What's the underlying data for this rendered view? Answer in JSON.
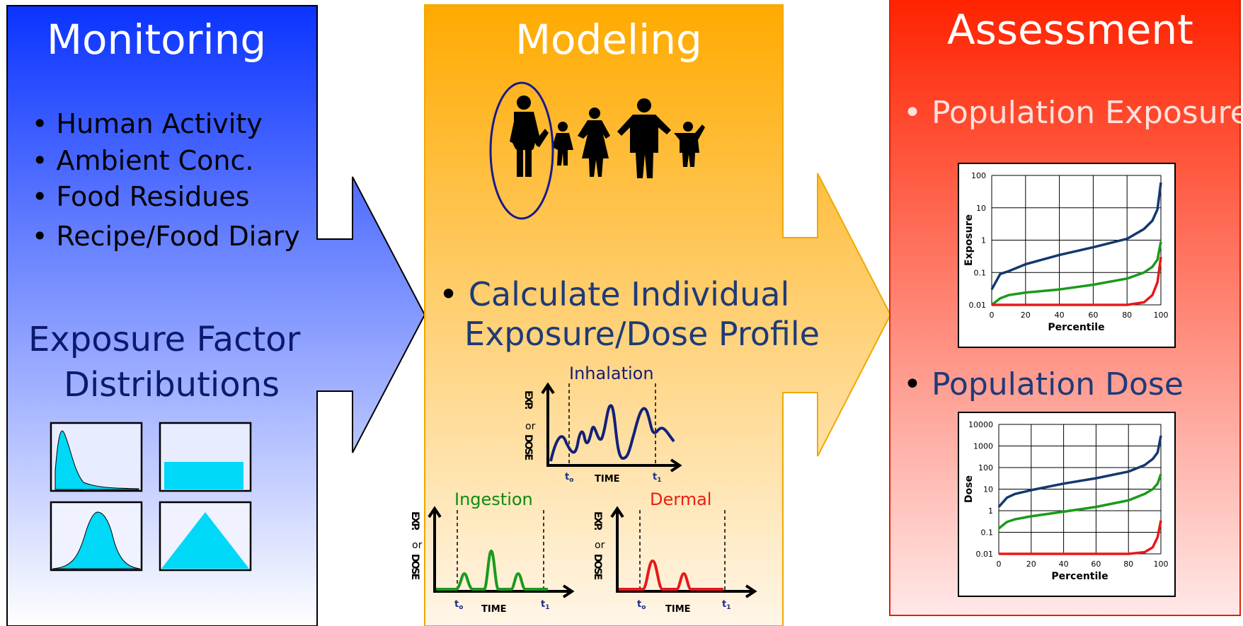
{
  "panels": {
    "monitoring": {
      "title": "Monitoring",
      "bullets": [
        "Human Activity",
        "Ambient Conc.",
        "Food Residues",
        "Recipe/Food Diary"
      ],
      "subtitle_line1": "Exposure Factor",
      "subtitle_line2": "Distributions"
    },
    "modeling": {
      "title": "Modeling",
      "bullet_line1": "Calculate Individual",
      "bullet_line2": "Exposure/Dose Profile",
      "graphs": {
        "inhalation": {
          "label": "Inhalation",
          "color": "#1a1a7a"
        },
        "ingestion": {
          "label": "Ingestion",
          "color": "#108a10"
        },
        "dermal": {
          "label": "Dermal",
          "color": "#e82010"
        }
      },
      "axis_y": {
        "top": "EXP.",
        "mid": "or",
        "bottom": "DOSE"
      },
      "axis_x": "TIME",
      "t0": "t",
      "t0_sub": "o",
      "t1": "t",
      "t1_sub": "1"
    },
    "assessment": {
      "title": "Assessment",
      "bullet1": "Population Exposure",
      "bullet2": "Population Dose"
    }
  },
  "colors": {
    "blue_top": "#0a33ff",
    "orange_top": "#ffaa00",
    "red_top": "#ff2200",
    "distribution_fill": "#00d8f8",
    "series_blue": "#13386e",
    "series_green": "#1a9a1a",
    "series_red": "#e81818"
  },
  "chart_data": [
    {
      "type": "line",
      "ylabel": "Exposure",
      "xlabel": "Percentile",
      "yscale": "log",
      "ylim": [
        0.01,
        100
      ],
      "xlim": [
        0,
        100
      ],
      "x_ticks": [
        "0",
        "20",
        "40",
        "60",
        "80",
        "100"
      ],
      "y_ticks": [
        "100",
        "10",
        "1",
        "0.1",
        "0.01"
      ],
      "x": [
        0,
        5,
        10,
        20,
        40,
        60,
        80,
        90,
        95,
        98,
        100
      ],
      "series": [
        {
          "color": "#13386e",
          "values": [
            0.03,
            0.09,
            0.11,
            0.18,
            0.35,
            0.6,
            1.1,
            2.2,
            4,
            9,
            60
          ]
        },
        {
          "color": "#1a9a1a",
          "values": [
            0.01,
            0.016,
            0.02,
            0.024,
            0.03,
            0.042,
            0.065,
            0.1,
            0.15,
            0.25,
            0.9
          ]
        },
        {
          "color": "#e81818",
          "values": [
            0.01,
            0.01,
            0.01,
            0.01,
            0.01,
            0.01,
            0.01,
            0.012,
            0.02,
            0.05,
            0.3
          ]
        }
      ],
      "grid": true
    },
    {
      "type": "line",
      "ylabel": "Dose",
      "xlabel": "Percentile",
      "yscale": "log",
      "ylim": [
        0.01,
        10000
      ],
      "xlim": [
        0,
        100
      ],
      "x_ticks": [
        "0",
        "20",
        "40",
        "60",
        "80",
        "100"
      ],
      "y_ticks": [
        "10000",
        "1000",
        "100",
        "10",
        "1",
        "0.1",
        "0.01"
      ],
      "x": [
        0,
        5,
        10,
        20,
        40,
        60,
        80,
        90,
        95,
        98,
        100
      ],
      "series": [
        {
          "color": "#13386e",
          "values": [
            1.5,
            4,
            6,
            9,
            18,
            32,
            65,
            130,
            250,
            500,
            3000
          ]
        },
        {
          "color": "#1a9a1a",
          "values": [
            0.15,
            0.3,
            0.4,
            0.55,
            0.9,
            1.5,
            3,
            6,
            10,
            18,
            50
          ]
        },
        {
          "color": "#e81818",
          "values": [
            0.01,
            0.01,
            0.01,
            0.01,
            0.01,
            0.01,
            0.01,
            0.012,
            0.02,
            0.06,
            0.35
          ]
        }
      ],
      "grid": true
    }
  ]
}
